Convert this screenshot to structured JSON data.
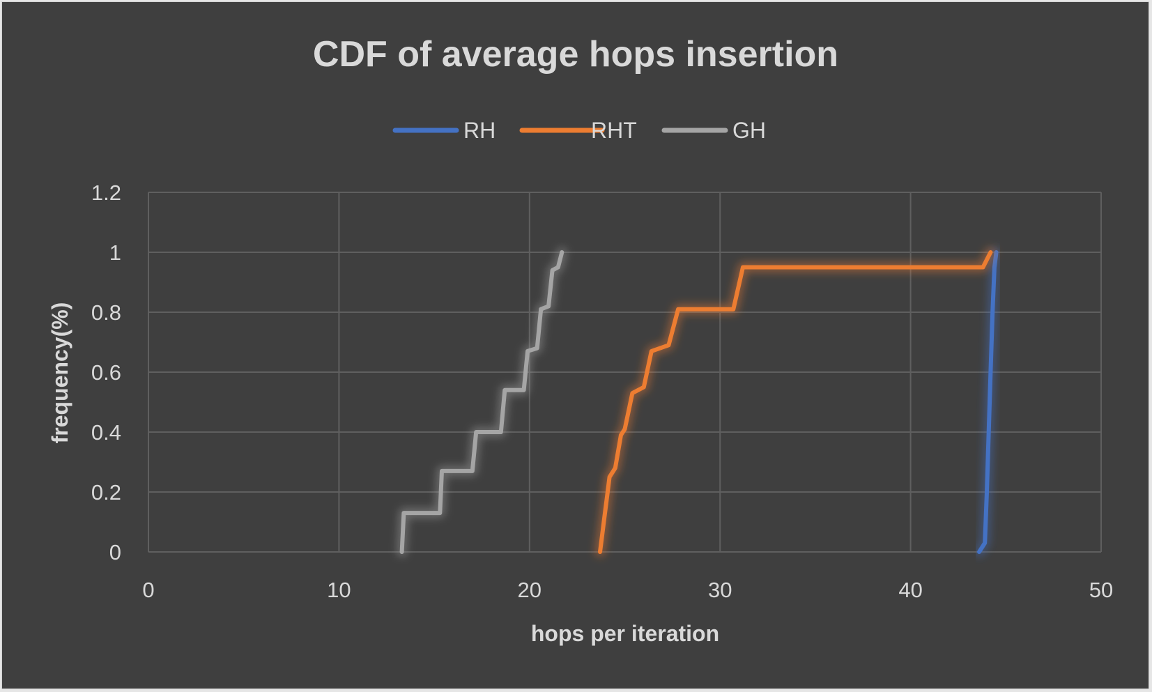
{
  "chart_data": {
    "type": "line",
    "title": "CDF of average hops insertion",
    "xlabel": "hops per iteration",
    "ylabel": "frequency(%)",
    "xlim": [
      0,
      50
    ],
    "ylim": [
      0,
      1.2
    ],
    "x_ticks": [
      "0",
      "10",
      "20",
      "30",
      "40",
      "50"
    ],
    "y_ticks": [
      "0",
      "0.2",
      "0.4",
      "0.6",
      "0.8",
      "1",
      "1.2"
    ],
    "grid": true,
    "legend_position": "top",
    "series": [
      {
        "name": "RH",
        "color": "#4472c4",
        "points": [
          [
            43.6,
            0
          ],
          [
            43.9,
            0.03
          ],
          [
            44.0,
            0.2
          ],
          [
            44.1,
            0.4
          ],
          [
            44.2,
            0.6
          ],
          [
            44.3,
            0.8
          ],
          [
            44.4,
            0.95
          ],
          [
            44.5,
            1.0
          ]
        ]
      },
      {
        "name": "RHT",
        "color": "#ed7d31",
        "points": [
          [
            23.7,
            0
          ],
          [
            23.9,
            0.1
          ],
          [
            24.1,
            0.2
          ],
          [
            24.2,
            0.25
          ],
          [
            24.5,
            0.28
          ],
          [
            24.8,
            0.39
          ],
          [
            25.0,
            0.41
          ],
          [
            25.4,
            0.53
          ],
          [
            26.0,
            0.55
          ],
          [
            26.4,
            0.67
          ],
          [
            27.3,
            0.69
          ],
          [
            27.8,
            0.81
          ],
          [
            30.7,
            0.81
          ],
          [
            31.2,
            0.95
          ],
          [
            43.8,
            0.95
          ],
          [
            44.2,
            1.0
          ]
        ]
      },
      {
        "name": "GH",
        "color": "#a5a5a5",
        "points": [
          [
            13.3,
            0
          ],
          [
            13.4,
            0.13
          ],
          [
            15.3,
            0.13
          ],
          [
            15.4,
            0.27
          ],
          [
            17.0,
            0.27
          ],
          [
            17.2,
            0.4
          ],
          [
            18.5,
            0.4
          ],
          [
            18.7,
            0.54
          ],
          [
            19.7,
            0.54
          ],
          [
            19.9,
            0.67
          ],
          [
            20.4,
            0.68
          ],
          [
            20.6,
            0.81
          ],
          [
            21.0,
            0.82
          ],
          [
            21.2,
            0.94
          ],
          [
            21.5,
            0.95
          ],
          [
            21.7,
            1.0
          ]
        ]
      }
    ]
  }
}
